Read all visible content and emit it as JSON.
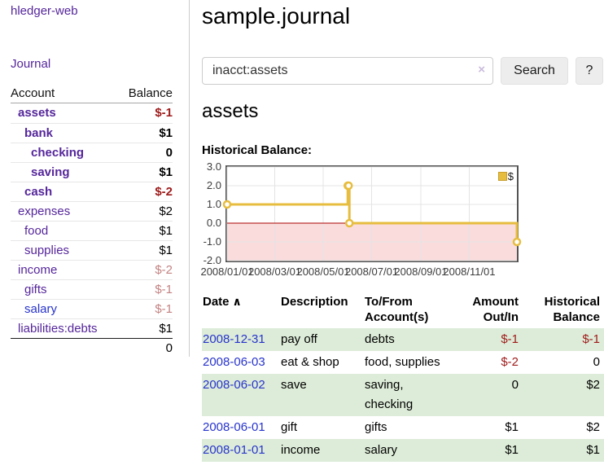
{
  "colors": {
    "purple": "#55269b",
    "blue_link": "#2733cc",
    "neg_strong": "#9e1a1a",
    "neg_muted": "#c48383",
    "row_green": "#ddecd8"
  },
  "sidebar": {
    "app_title": "hledger-web",
    "journal_link": "Journal",
    "accounts": {
      "header": {
        "account": "Account",
        "balance": "Balance"
      },
      "rows": [
        {
          "name": "assets",
          "depth": 1,
          "bold": true,
          "balance": "$-1",
          "balance_color": "neg_strong"
        },
        {
          "name": "bank",
          "depth": 2,
          "bold": true,
          "balance": "$1",
          "balance_color": "black"
        },
        {
          "name": "checking",
          "depth": 3,
          "bold": true,
          "balance": "0",
          "balance_color": "black"
        },
        {
          "name": "saving",
          "depth": 3,
          "bold": true,
          "balance": "$1",
          "balance_color": "black"
        },
        {
          "name": "cash",
          "depth": 2,
          "bold": true,
          "balance": "$-2",
          "balance_color": "neg_strong"
        },
        {
          "name": "expenses",
          "depth": 1,
          "bold": false,
          "balance": "$2",
          "balance_color": "black"
        },
        {
          "name": "food",
          "depth": 2,
          "bold": false,
          "balance": "$1",
          "balance_color": "black"
        },
        {
          "name": "supplies",
          "depth": 2,
          "bold": false,
          "balance": "$1",
          "balance_color": "black"
        },
        {
          "name": "income",
          "depth": 1,
          "bold": false,
          "balance": "$-2",
          "balance_color": "neg_muted"
        },
        {
          "name": "gifts",
          "depth": 2,
          "bold": false,
          "balance": "$-1",
          "balance_color": "neg_muted"
        },
        {
          "name": "salary",
          "depth": 2,
          "bold": false,
          "balance": "$-1",
          "balance_color": "neg_muted",
          "link_color": "blue"
        },
        {
          "name": "liabilities:debts",
          "depth": 1,
          "bold": false,
          "balance": "$1",
          "balance_color": "black"
        }
      ],
      "total": "0"
    }
  },
  "main": {
    "title": "sample.journal",
    "search": {
      "value": "inacct:assets",
      "clear_icon": "×",
      "search_button": "Search",
      "help_button": "?"
    },
    "account_heading": "assets",
    "chart_title": "Historical Balance:"
  },
  "chart_data": {
    "type": "line",
    "step": true,
    "title": "Historical Balance:",
    "series": [
      {
        "name": "$",
        "color": "#e7bd3f",
        "points": [
          {
            "date": "2008-01-01",
            "value": 1
          },
          {
            "date": "2008-06-01",
            "value": 2
          },
          {
            "date": "2008-06-02",
            "value": 2
          },
          {
            "date": "2008-06-03",
            "value": 0
          },
          {
            "date": "2008-12-31",
            "value": -1
          }
        ]
      }
    ],
    "x_start": "2008-01-01",
    "x_end": "2008-12-31",
    "xticks": [
      {
        "date": "2008-01-01",
        "label": "2008/01/01"
      },
      {
        "date": "2008-03-01",
        "label": "2008/03/01"
      },
      {
        "date": "2008-05-01",
        "label": "2008/05/01"
      },
      {
        "date": "2008-07-01",
        "label": "2008/07/01"
      },
      {
        "date": "2008-09-01",
        "label": "2008/09/01"
      },
      {
        "date": "2008-11-01",
        "label": "2008/11/01"
      }
    ],
    "yticks": [
      "3.0",
      "2.0",
      "1.0",
      "0.0",
      "-1.0",
      "-2.0"
    ],
    "ylim": [
      -2,
      3
    ],
    "grid": true,
    "legend": {
      "label": "$",
      "position": "top-right"
    },
    "negative_fill": "#fadcdc",
    "zero_line": "#aa0000",
    "grid_color": "#e4e4e4"
  },
  "register_table": {
    "headers": {
      "date": "Date",
      "sort_icon": "∧",
      "description": "Description",
      "accounts": "To/From\nAccount(s)",
      "amount": "Amount\nOut/In",
      "balance": "Historical\nBalance"
    },
    "rows": [
      {
        "date": "2008-12-31",
        "description": "pay off",
        "accounts": "debts",
        "amount": "$-1",
        "amount_neg": true,
        "balance": "$-1",
        "balance_neg": true,
        "shaded": true
      },
      {
        "date": "2008-06-03",
        "description": "eat & shop",
        "accounts": "food, supplies",
        "amount": "$-2",
        "amount_neg": true,
        "balance": "0",
        "balance_neg": false,
        "shaded": false
      },
      {
        "date": "2008-06-02",
        "description": "save",
        "accounts": "saving, checking",
        "amount": "0",
        "amount_neg": false,
        "balance": "$2",
        "balance_neg": false,
        "shaded": true
      },
      {
        "date": "2008-06-01",
        "description": "gift",
        "accounts": "gifts",
        "amount": "$1",
        "amount_neg": false,
        "balance": "$2",
        "balance_neg": false,
        "shaded": false
      },
      {
        "date": "2008-01-01",
        "description": "income",
        "accounts": "salary",
        "amount": "$1",
        "amount_neg": false,
        "balance": "$1",
        "balance_neg": false,
        "shaded": true
      }
    ]
  }
}
